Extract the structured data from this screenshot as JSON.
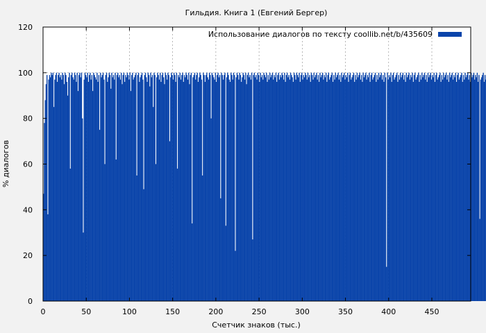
{
  "chart_data": {
    "type": "bar",
    "title": "Гильдия. Книга 1 (Евгений Бергер)",
    "xlabel": "Счетчик знаков (тыс.)",
    "ylabel": "% диалогов",
    "xlim": [
      0,
      495
    ],
    "ylim": [
      0,
      120
    ],
    "xticks": [
      0,
      50,
      100,
      150,
      200,
      250,
      300,
      350,
      400,
      450
    ],
    "yticks": [
      0,
      20,
      40,
      60,
      80,
      100,
      120
    ],
    "grid": "dotted vertical at x ticks, horizontal at 100",
    "legend_position": "top-right",
    "series": [
      {
        "name": "Использование диалогов по тексту  coollib.net/b/435609",
        "color": "#0a44aa",
        "bin_width": 1,
        "x_start": 0,
        "values": [
          47,
          78,
          88,
          95,
          99,
          38,
          97,
          99,
          98,
          100,
          99,
          100,
          85,
          97,
          99,
          100,
          96,
          99,
          100,
          98,
          99,
          97,
          100,
          99,
          95,
          100,
          99,
          96,
          90,
          98,
          100,
          58,
          99,
          100,
          98,
          97,
          100,
          99,
          96,
          100,
          92,
          99,
          100,
          98,
          100,
          80,
          30,
          97,
          100,
          99,
          98,
          100,
          96,
          99,
          100,
          97,
          99,
          92,
          100,
          99,
          98,
          97,
          100,
          96,
          99,
          75,
          100,
          98,
          99,
          100,
          97,
          60,
          99,
          100,
          96,
          98,
          100,
          99,
          93,
          100,
          98,
          99,
          97,
          100,
          62,
          99,
          100,
          98,
          99,
          97,
          100,
          95,
          99,
          100,
          96,
          99,
          98,
          100,
          99,
          97,
          100,
          92,
          99,
          100,
          97,
          98,
          99,
          100,
          55,
          99,
          100,
          96,
          98,
          99,
          100,
          97,
          49,
          99,
          100,
          98,
          96,
          100,
          99,
          94,
          100,
          98,
          99,
          85,
          100,
          99,
          60,
          98,
          100,
          99,
          97,
          100,
          96,
          99,
          100,
          98,
          95,
          100,
          99,
          97,
          100,
          99,
          70,
          98,
          100,
          99,
          97,
          100,
          99,
          96,
          100,
          58,
          99,
          98,
          100,
          97,
          99,
          100,
          96,
          99,
          98,
          100,
          99,
          97,
          100,
          95,
          99,
          100,
          34,
          98,
          99,
          100,
          97,
          99,
          100,
          96,
          98,
          100,
          99,
          97,
          55,
          100,
          99,
          96,
          99,
          100,
          98,
          97,
          100,
          99,
          80,
          100,
          99,
          98,
          97,
          100,
          96,
          99,
          100,
          98,
          99,
          45,
          100,
          99,
          97,
          99,
          100,
          33,
          98,
          100,
          99,
          97,
          96,
          100,
          99,
          97,
          100,
          99,
          22,
          98,
          100,
          99,
          97,
          100,
          99,
          96,
          98,
          100,
          99,
          97,
          100,
          95,
          99,
          100,
          98,
          99,
          97,
          100,
          27,
          99,
          100,
          98,
          99,
          97,
          100,
          99,
          96,
          100,
          98,
          99,
          97,
          100,
          99,
          98,
          100,
          96,
          99,
          97,
          100,
          98,
          99,
          100,
          97,
          99,
          98,
          100,
          96,
          99,
          100,
          97,
          99,
          98,
          100,
          99,
          97,
          100,
          96,
          99,
          100,
          98,
          99,
          97,
          100,
          99,
          98,
          96,
          100,
          99,
          97,
          100,
          99,
          98,
          100,
          96,
          99,
          100,
          97,
          99,
          98,
          100,
          99,
          97,
          100,
          98,
          99,
          96,
          100,
          99,
          97,
          100,
          98,
          99,
          100,
          97,
          99,
          96,
          100,
          98,
          99,
          100,
          97,
          99,
          98,
          100,
          96,
          99,
          100,
          97,
          98,
          99,
          100,
          96,
          99,
          97,
          100,
          98,
          99,
          100,
          97,
          99,
          96,
          100,
          98,
          99,
          100,
          97,
          99,
          98,
          100,
          96,
          99,
          100,
          97,
          98,
          99,
          100,
          96,
          99,
          97,
          100,
          98,
          99,
          100,
          97,
          99,
          96,
          100,
          98,
          99,
          100,
          97,
          99,
          98,
          100,
          96,
          99,
          100,
          97,
          98,
          99,
          100,
          96,
          99,
          97,
          100,
          98,
          99,
          100,
          97,
          99,
          96,
          100,
          98,
          15,
          100,
          97,
          99,
          98,
          100,
          96,
          99,
          100,
          97,
          98,
          99,
          100,
          96,
          99,
          97,
          100,
          98,
          99,
          100,
          97,
          99,
          96,
          100,
          98,
          99,
          100,
          97,
          99,
          98,
          100,
          96,
          99,
          100,
          97,
          98,
          99,
          100,
          96,
          99,
          97,
          100,
          98,
          99,
          100,
          97,
          99,
          96,
          100,
          98,
          99,
          100,
          97,
          99,
          98,
          100,
          96,
          99,
          100,
          97,
          98,
          99,
          100,
          96,
          99,
          97,
          100,
          98,
          99,
          100,
          97,
          99,
          96,
          100,
          98,
          99,
          100,
          97,
          99,
          98,
          100,
          96,
          99,
          100,
          97,
          98,
          99,
          100,
          96,
          99,
          97,
          100,
          98,
          99,
          100,
          97,
          99,
          96,
          100,
          98,
          99,
          100,
          97,
          99,
          98,
          100,
          96,
          99,
          36,
          97,
          98,
          99,
          100,
          96,
          99,
          97,
          100,
          98,
          99,
          100,
          97,
          99,
          96,
          100,
          98,
          48,
          67
        ]
      }
    ]
  }
}
